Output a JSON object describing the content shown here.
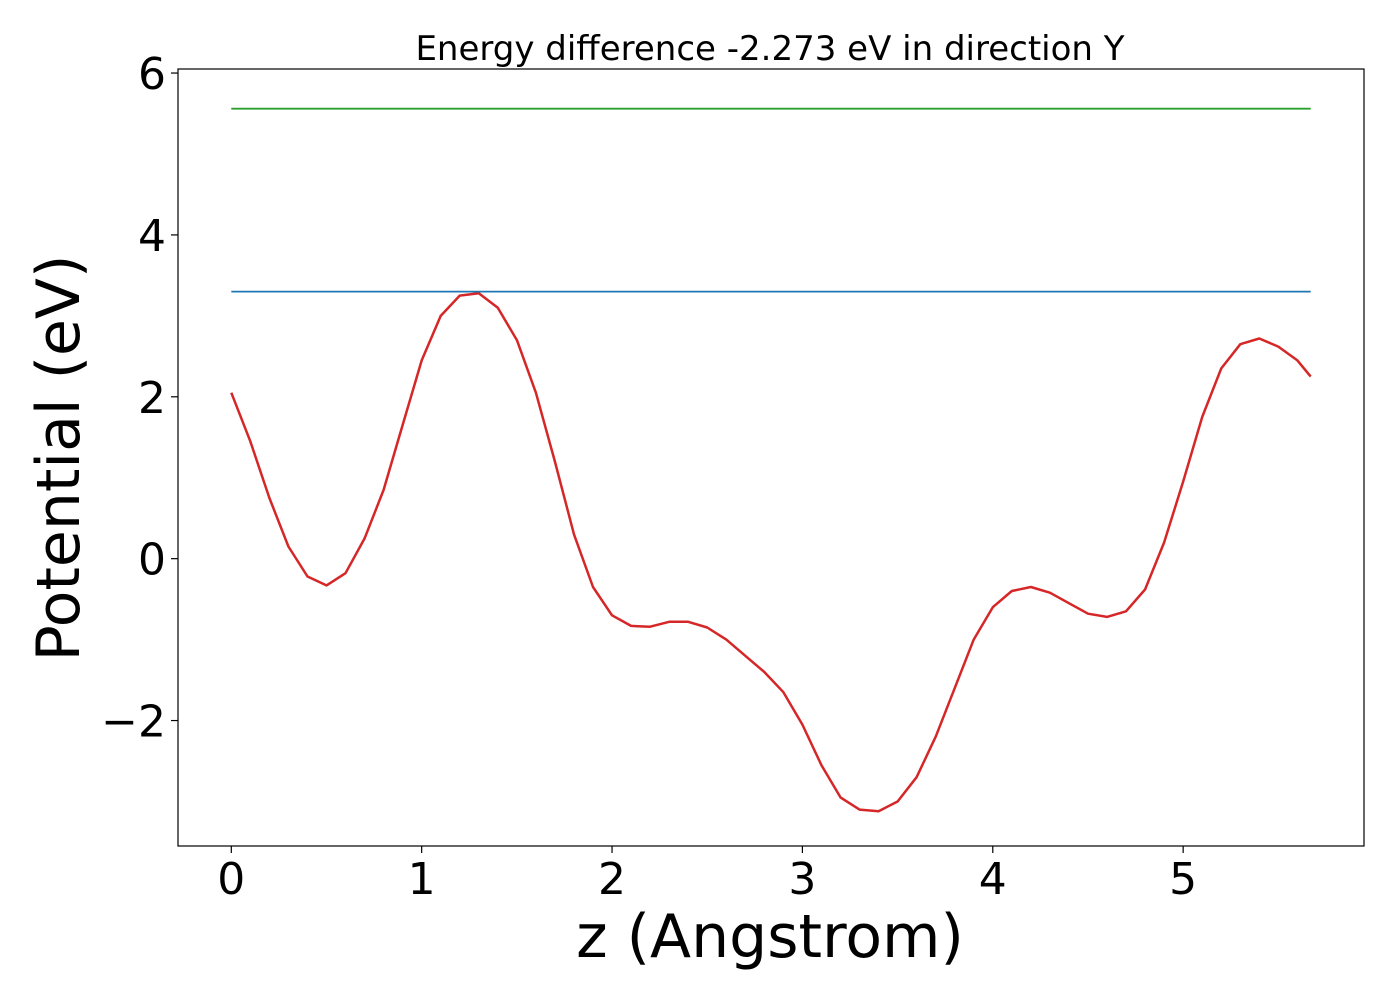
{
  "chart_data": {
    "type": "line",
    "title": "Energy difference -2.273 eV in direction Y",
    "xlabel": "z (Angstrom)",
    "ylabel": "Potential (eV)",
    "xlim": [
      -0.28,
      5.95
    ],
    "ylim": [
      -3.55,
      6.05
    ],
    "x_ticks": [
      0,
      1,
      2,
      3,
      4,
      5
    ],
    "x_tick_labels": [
      "0",
      "1",
      "2",
      "3",
      "4",
      "5"
    ],
    "y_ticks": [
      -2,
      0,
      2,
      4,
      6
    ],
    "y_tick_labels": [
      "−2",
      "0",
      "2",
      "4",
      "6"
    ],
    "grid": false,
    "legend": "none",
    "series": [
      {
        "color": "#d62728",
        "x": [
          0,
          0.1,
          0.2,
          0.3,
          0.4,
          0.5,
          0.6,
          0.7,
          0.8,
          0.9,
          1.0,
          1.1,
          1.2,
          1.3,
          1.4,
          1.5,
          1.6,
          1.7,
          1.8,
          1.9,
          2.0,
          2.1,
          2.2,
          2.3,
          2.4,
          2.5,
          2.6,
          2.7,
          2.8,
          2.9,
          3.0,
          3.1,
          3.2,
          3.3,
          3.4,
          3.5,
          3.6,
          3.7,
          3.8,
          3.9,
          4.0,
          4.1,
          4.2,
          4.3,
          4.4,
          4.5,
          4.6,
          4.7,
          4.8,
          4.9,
          5.0,
          5.1,
          5.2,
          5.3,
          5.4,
          5.5,
          5.6,
          5.67
        ],
        "values": [
          2.05,
          1.45,
          0.75,
          0.15,
          -0.22,
          -0.33,
          -0.18,
          0.25,
          0.85,
          1.65,
          2.45,
          3.0,
          3.25,
          3.28,
          3.1,
          2.7,
          2.05,
          1.2,
          0.3,
          -0.35,
          -0.7,
          -0.83,
          -0.84,
          -0.78,
          -0.78,
          -0.85,
          -1.0,
          -1.2,
          -1.4,
          -1.65,
          -2.05,
          -2.55,
          -2.95,
          -3.1,
          -3.12,
          -3.0,
          -2.7,
          -2.2,
          -1.6,
          -1.0,
          -0.6,
          -0.4,
          -0.35,
          -0.42,
          -0.55,
          -0.68,
          -0.72,
          -0.65,
          -0.38,
          0.2,
          0.95,
          1.75,
          2.35,
          2.65,
          2.72,
          2.62,
          2.45,
          2.25
        ]
      },
      {
        "color": "#1f77b4",
        "x": [
          0,
          5.67
        ],
        "values": [
          3.3,
          3.3
        ]
      },
      {
        "color": "#2ca02c",
        "x": [
          0,
          5.67
        ],
        "values": [
          5.56,
          5.56
        ]
      }
    ]
  }
}
